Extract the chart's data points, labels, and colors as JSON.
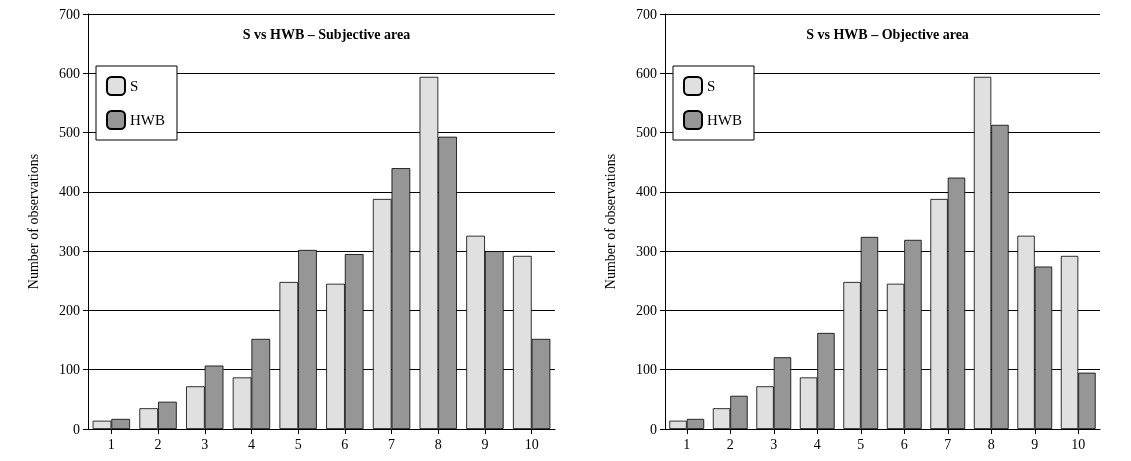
{
  "chart_data": [
    {
      "type": "bar",
      "title": "S vs HWB – Subjective area",
      "ylabel": "Number of observations",
      "categories": [
        "1",
        "2",
        "3",
        "4",
        "5",
        "6",
        "7",
        "8",
        "9",
        "10"
      ],
      "series": [
        {
          "name": "S",
          "color": "#e0e0e0",
          "values": [
            14,
            35,
            72,
            87,
            248,
            245,
            388,
            594,
            326,
            292
          ]
        },
        {
          "name": "HWB",
          "color": "#969696",
          "values": [
            17,
            46,
            107,
            152,
            302,
            295,
            440,
            493,
            300,
            152
          ]
        }
      ],
      "ylim": [
        0,
        700
      ],
      "yticks": [
        0,
        100,
        200,
        300,
        400,
        500,
        600,
        700
      ],
      "grid": "y",
      "legend": "top left"
    },
    {
      "type": "bar",
      "title": "S vs HWB – Objective area",
      "ylabel": "Number of observations",
      "categories": [
        "1",
        "2",
        "3",
        "4",
        "5",
        "6",
        "7",
        "8",
        "9",
        "10"
      ],
      "series": [
        {
          "name": "S",
          "color": "#e0e0e0",
          "values": [
            14,
            35,
            72,
            87,
            248,
            245,
            388,
            594,
            326,
            292
          ]
        },
        {
          "name": "HWB",
          "color": "#969696",
          "values": [
            17,
            56,
            121,
            162,
            324,
            319,
            424,
            513,
            274,
            95
          ]
        }
      ],
      "ylim": [
        0,
        700
      ],
      "yticks": [
        0,
        100,
        200,
        300,
        400,
        500,
        600,
        700
      ],
      "grid": "y",
      "legend": "top left"
    }
  ]
}
